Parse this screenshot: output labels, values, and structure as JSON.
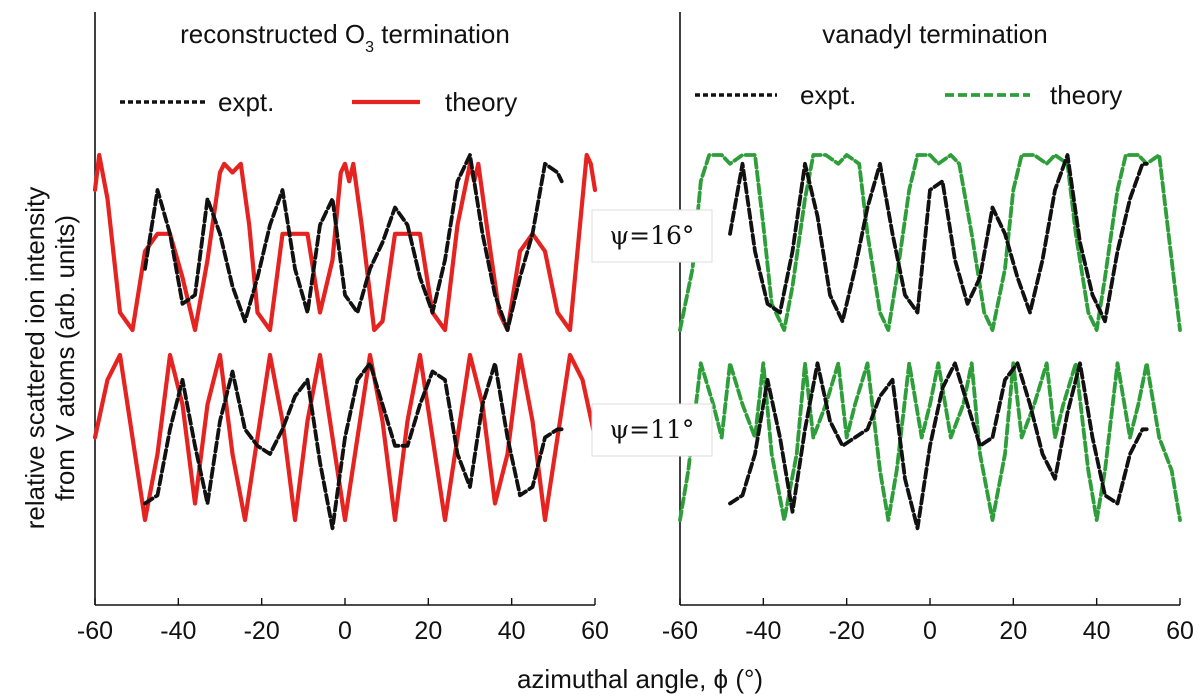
{
  "chart_data": {
    "type": "line",
    "xlabel": "azimuthal angle, ϕ (°)",
    "ylabel_lines": [
      "relative scattered ion intensity",
      "from V atoms (arb. units)"
    ],
    "xlim": [
      -60,
      60
    ],
    "xticks": [
      "-60",
      "-40",
      "-20",
      "0",
      "20",
      "40",
      "60"
    ],
    "psi_labels": [
      "ψ=16°",
      "ψ=11°"
    ],
    "colors": {
      "expt": "#111111",
      "theory_o3": "#e52421",
      "theory_vanadyl": "#2e9e3a"
    },
    "panels": [
      {
        "id": "o3",
        "title_main": "reconstructed O",
        "title_sub": "3",
        "title_rest": " termination",
        "legend": [
          {
            "label": "expt.",
            "style": "dotted",
            "color": "#111111"
          },
          {
            "label": "theory",
            "style": "solid",
            "color": "#e52421"
          }
        ],
        "series": [
          {
            "name": "expt.",
            "curve": "psi16",
            "style": "dashed",
            "color": "#111111",
            "x": [
              -48,
              -45,
              -42,
              -39,
              -36,
              -33,
              -30,
              -27,
              -24,
              -21,
              -18,
              -15,
              -12,
              -9,
              -6,
              -3,
              0,
              3,
              6,
              9,
              12,
              15,
              18,
              21,
              24,
              27,
              30,
              33,
              36,
              39,
              42,
              45,
              48,
              51,
              52
            ],
            "y": [
              0.35,
              0.8,
              0.55,
              0.15,
              0.2,
              0.75,
              0.55,
              0.25,
              0.05,
              0.3,
              0.6,
              0.8,
              0.35,
              0.1,
              0.6,
              0.75,
              0.2,
              0.1,
              0.35,
              0.5,
              0.7,
              0.6,
              0.3,
              0.1,
              0.4,
              0.85,
              1.0,
              0.55,
              0.2,
              0.0,
              0.3,
              0.55,
              0.95,
              0.9,
              0.85
            ]
          },
          {
            "name": "theory",
            "curve": "psi16",
            "style": "solid",
            "color": "#e52421",
            "x": [
              -60,
              -59,
              -57,
              -54,
              -51,
              -48,
              -45,
              -42,
              -39,
              -36,
              -33,
              -30,
              -29,
              -27,
              -25,
              -23,
              -21,
              -18,
              -15,
              -12,
              -9,
              -6,
              -3,
              -1,
              0,
              1,
              2,
              4,
              7,
              9,
              12,
              15,
              18,
              21,
              24,
              27,
              30,
              31,
              32,
              34,
              37,
              39,
              42,
              45,
              48,
              51,
              54,
              57,
              58,
              59,
              60
            ],
            "y": [
              0.8,
              1.0,
              0.75,
              0.1,
              0.0,
              0.45,
              0.55,
              0.55,
              0.3,
              0.0,
              0.4,
              0.9,
              0.95,
              0.9,
              0.95,
              0.6,
              0.1,
              0.0,
              0.55,
              0.55,
              0.55,
              0.1,
              0.4,
              0.9,
              0.95,
              0.85,
              0.95,
              0.6,
              0.0,
              0.05,
              0.55,
              0.55,
              0.55,
              0.1,
              0.0,
              0.6,
              0.95,
              0.85,
              0.95,
              0.6,
              0.1,
              0.0,
              0.45,
              0.55,
              0.45,
              0.1,
              0.0,
              0.75,
              1.0,
              0.95,
              0.8
            ]
          },
          {
            "name": "expt.",
            "curve": "psi11",
            "style": "dashed",
            "color": "#111111",
            "x": [
              -48,
              -45,
              -42,
              -39,
              -36,
              -33,
              -30,
              -27,
              -24,
              -21,
              -18,
              -15,
              -12,
              -9,
              -6,
              -3,
              0,
              3,
              6,
              9,
              12,
              15,
              18,
              21,
              24,
              27,
              30,
              33,
              36,
              39,
              42,
              45,
              48,
              51,
              52
            ],
            "y": [
              0.1,
              0.15,
              0.55,
              0.85,
              0.45,
              0.1,
              0.6,
              0.9,
              0.55,
              0.45,
              0.4,
              0.55,
              0.75,
              0.85,
              0.35,
              -0.05,
              0.5,
              0.85,
              0.95,
              0.7,
              0.45,
              0.45,
              0.7,
              0.9,
              0.85,
              0.4,
              0.2,
              0.7,
              0.95,
              0.5,
              0.15,
              0.2,
              0.5,
              0.55,
              0.55
            ]
          },
          {
            "name": "theory",
            "curve": "psi11",
            "style": "solid",
            "color": "#e52421",
            "x": [
              -60,
              -57,
              -54,
              -51,
              -48,
              -45,
              -42,
              -39,
              -36,
              -33,
              -30,
              -27,
              -24,
              -21,
              -18,
              -15,
              -12,
              -9,
              -6,
              -3,
              0,
              3,
              6,
              9,
              12,
              15,
              18,
              21,
              24,
              27,
              30,
              33,
              36,
              39,
              42,
              45,
              48,
              51,
              54,
              57,
              60
            ],
            "y": [
              0.5,
              0.85,
              1.0,
              0.5,
              0.0,
              0.4,
              1.0,
              0.7,
              0.1,
              0.7,
              1.0,
              0.4,
              0.0,
              0.5,
              1.0,
              0.6,
              0.0,
              0.6,
              1.0,
              0.5,
              0.0,
              0.5,
              1.0,
              0.6,
              0.0,
              0.6,
              1.0,
              0.5,
              0.0,
              0.5,
              1.0,
              0.7,
              0.1,
              0.4,
              1.0,
              0.6,
              0.0,
              0.5,
              1.0,
              0.85,
              0.5
            ]
          }
        ]
      },
      {
        "id": "vanadyl",
        "title_main": "vanadyl termination",
        "title_sub": "",
        "title_rest": "",
        "legend": [
          {
            "label": "expt.",
            "style": "dotted",
            "color": "#111111"
          },
          {
            "label": "theory",
            "style": "dashed",
            "color": "#2e9e3a"
          }
        ],
        "series": [
          {
            "name": "expt.",
            "curve": "psi16",
            "style": "dashed",
            "color": "#111111",
            "x": [
              -48,
              -45,
              -42,
              -39,
              -36,
              -33,
              -30,
              -27,
              -24,
              -21,
              -18,
              -15,
              -12,
              -9,
              -6,
              -3,
              0,
              3,
              6,
              9,
              12,
              15,
              18,
              21,
              24,
              27,
              30,
              33,
              36,
              39,
              42,
              45,
              48,
              51,
              52
            ],
            "y": [
              0.55,
              0.95,
              0.45,
              0.15,
              0.1,
              0.45,
              0.95,
              0.65,
              0.2,
              0.05,
              0.35,
              0.7,
              0.95,
              0.55,
              0.2,
              0.1,
              0.8,
              0.85,
              0.4,
              0.15,
              0.3,
              0.7,
              0.55,
              0.3,
              0.1,
              0.4,
              0.8,
              1.0,
              0.5,
              0.2,
              0.05,
              0.45,
              0.75,
              0.95,
              0.95
            ]
          },
          {
            "name": "theory",
            "curve": "psi16",
            "style": "dashed",
            "color": "#2e9e3a",
            "x": [
              -60,
              -57,
              -55,
              -53,
              -50,
              -48,
              -45,
              -42,
              -40,
              -38,
              -35,
              -33,
              -30,
              -28,
              -25,
              -22,
              -20,
              -17,
              -15,
              -12,
              -10,
              -8,
              -5,
              -3,
              0,
              2,
              5,
              7,
              10,
              13,
              15,
              18,
              20,
              22,
              25,
              28,
              30,
              33,
              35,
              38,
              40,
              42,
              45,
              47,
              50,
              52,
              55,
              57,
              60
            ],
            "y": [
              0.0,
              0.35,
              0.85,
              1.0,
              1.0,
              0.95,
              1.0,
              1.0,
              0.6,
              0.15,
              0.0,
              0.25,
              0.75,
              1.0,
              1.0,
              0.95,
              1.0,
              0.95,
              0.55,
              0.1,
              0.0,
              0.3,
              0.8,
              1.0,
              1.0,
              0.95,
              1.0,
              0.95,
              0.55,
              0.1,
              0.0,
              0.35,
              0.8,
              1.0,
              1.0,
              0.95,
              1.0,
              0.95,
              0.55,
              0.1,
              0.0,
              0.3,
              0.8,
              1.0,
              1.0,
              0.95,
              1.0,
              0.6,
              0.0
            ]
          },
          {
            "name": "expt.",
            "curve": "psi11",
            "style": "dashed",
            "color": "#111111",
            "x": [
              -48,
              -45,
              -42,
              -39,
              -36,
              -33,
              -30,
              -27,
              -24,
              -21,
              -18,
              -15,
              -12,
              -9,
              -6,
              -3,
              0,
              3,
              6,
              9,
              12,
              15,
              18,
              21,
              24,
              27,
              30,
              33,
              36,
              39,
              42,
              45,
              48,
              51,
              52
            ],
            "y": [
              0.1,
              0.15,
              0.4,
              0.85,
              0.5,
              0.05,
              0.55,
              0.95,
              0.6,
              0.45,
              0.5,
              0.55,
              0.75,
              0.85,
              0.25,
              -0.05,
              0.45,
              0.8,
              0.95,
              0.7,
              0.45,
              0.5,
              0.85,
              0.95,
              0.7,
              0.4,
              0.25,
              0.65,
              0.95,
              0.5,
              0.15,
              0.1,
              0.4,
              0.55,
              0.55
            ]
          },
          {
            "name": "theory",
            "curve": "psi11",
            "style": "dashed",
            "color": "#2e9e3a",
            "x": [
              -60,
              -58,
              -55,
              -52,
              -50,
              -48,
              -45,
              -42,
              -40,
              -38,
              -35,
              -32,
              -30,
              -28,
              -25,
              -22,
              -20,
              -18,
              -15,
              -12,
              -10,
              -8,
              -5,
              -2,
              0,
              2,
              5,
              8,
              10,
              12,
              15,
              18,
              20,
              22,
              25,
              28,
              30,
              32,
              35,
              38,
              40,
              42,
              45,
              48,
              50,
              52,
              55,
              58,
              60
            ],
            "y": [
              0.0,
              0.3,
              0.95,
              0.7,
              0.5,
              0.95,
              0.7,
              0.5,
              0.95,
              0.4,
              0.0,
              0.4,
              0.95,
              0.5,
              0.7,
              0.95,
              0.5,
              0.7,
              0.95,
              0.3,
              0.0,
              0.3,
              0.95,
              0.5,
              0.7,
              0.95,
              0.5,
              0.7,
              0.95,
              0.4,
              0.0,
              0.4,
              0.95,
              0.5,
              0.7,
              0.95,
              0.5,
              0.7,
              0.95,
              0.3,
              0.0,
              0.3,
              0.95,
              0.5,
              0.7,
              0.95,
              0.5,
              0.3,
              0.0
            ]
          }
        ]
      }
    ]
  }
}
